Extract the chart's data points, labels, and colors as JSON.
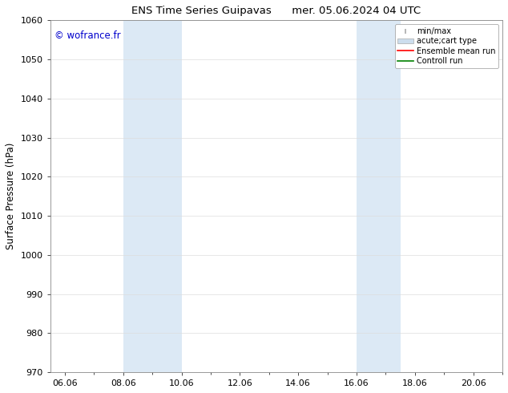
{
  "title": "ENS Time Series Guipavas      mer. 05.06.2024 04 UTC",
  "ylabel": "Surface Pressure (hPa)",
  "ylim": [
    970,
    1060
  ],
  "yticks": [
    970,
    980,
    990,
    1000,
    1010,
    1020,
    1030,
    1040,
    1050,
    1060
  ],
  "xlim_start": 5.5,
  "xlim_end": 21.0,
  "xtick_labels": [
    "06.06",
    "08.06",
    "10.06",
    "12.06",
    "14.06",
    "16.06",
    "18.06",
    "20.06"
  ],
  "xtick_positions": [
    6.0,
    8.0,
    10.0,
    12.0,
    14.0,
    16.0,
    18.0,
    20.0
  ],
  "shaded_bands": [
    {
      "xmin": 8.0,
      "xmax": 10.0
    },
    {
      "xmin": 16.0,
      "xmax": 17.5
    }
  ],
  "band_color": "#dce9f5",
  "watermark": "© wofrance.fr",
  "watermark_color": "#0000cc",
  "legend_entries": [
    {
      "label": "min/max",
      "color": "#aaaaaa",
      "type": "errorbar"
    },
    {
      "label": "acute;cart type",
      "color": "#ccdded",
      "type": "bar"
    },
    {
      "label": "Ensemble mean run",
      "color": "#ff0000",
      "type": "line"
    },
    {
      "label": "Controll run",
      "color": "#008000",
      "type": "line"
    }
  ],
  "background_color": "#ffffff",
  "grid_color": "#dddddd",
  "title_fontsize": 9.5,
  "axis_label_fontsize": 8.5,
  "tick_fontsize": 8,
  "legend_fontsize": 7
}
